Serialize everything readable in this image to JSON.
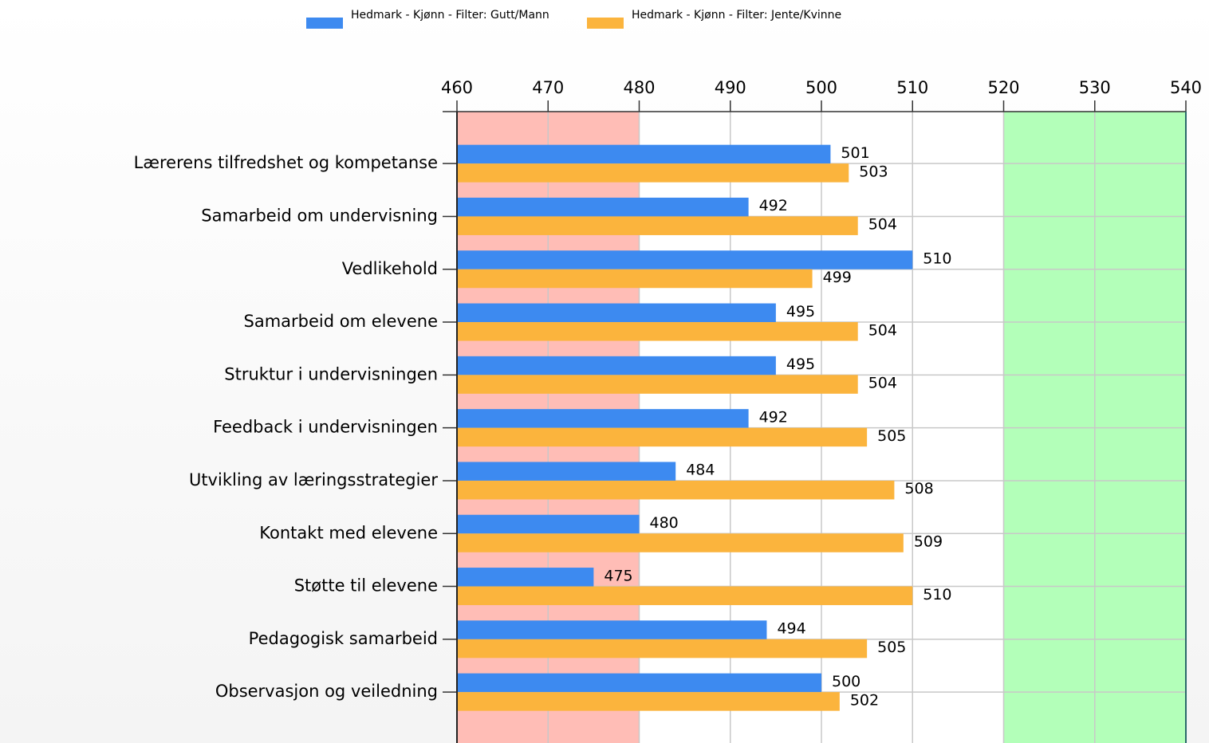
{
  "chart_data": {
    "type": "bar",
    "orientation": "horizontal",
    "categories": [
      "Lærerens tilfredshet og kompetanse",
      "Samarbeid om undervisning",
      "Vedlikehold",
      "Samarbeid om elevene",
      "Struktur i undervisningen",
      "Feedback i undervisningen",
      "Utvikling av læringsstrategier",
      "Kontakt med elevene",
      "Støtte til elevene",
      "Pedagogisk samarbeid",
      "Observasjon og veiledning"
    ],
    "series": [
      {
        "name": "Hedmark - Kjønn - Filter: Gutt/Mann",
        "color": "#3d8af0",
        "values": [
          501,
          492,
          510,
          495,
          495,
          492,
          484,
          480,
          475,
          494,
          500
        ]
      },
      {
        "name": "Hedmark - Kjønn - Filter: Jente/Kvinne",
        "color": "#fbb43d",
        "values": [
          503,
          504,
          499,
          504,
          504,
          505,
          508,
          509,
          510,
          505,
          502
        ]
      }
    ],
    "xlim": [
      460,
      540
    ],
    "xticks": [
      460,
      470,
      480,
      490,
      500,
      510,
      520,
      530,
      540
    ],
    "grid": true,
    "legend": "top",
    "background_bands": [
      {
        "from": 460,
        "to": 480,
        "color": "#ffbdb6"
      },
      {
        "from": 520,
        "to": 540,
        "color": "#b3ffb9"
      }
    ]
  }
}
